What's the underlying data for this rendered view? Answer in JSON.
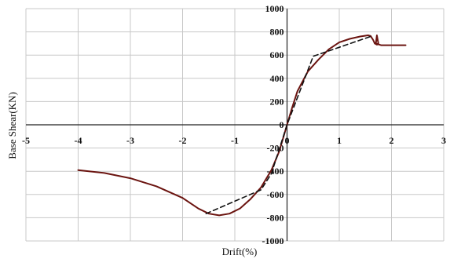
{
  "chart_data": {
    "type": "line",
    "title": "",
    "xlabel": "Drift(%)",
    "ylabel": "Base Shear(KN)",
    "xlim": [
      -5,
      3
    ],
    "ylim": [
      -1000,
      1000
    ],
    "x_ticks": [
      -5,
      -4,
      -3,
      -2,
      -1,
      0,
      1,
      2,
      3
    ],
    "y_ticks": [
      -1000,
      -800,
      -600,
      -400,
      -200,
      0,
      200,
      400,
      600,
      800,
      1000
    ],
    "grid": true,
    "legend": "none",
    "series": [
      {
        "style": "solid",
        "color": "#6b1410",
        "points": [
          [
            -4.0,
            -390
          ],
          [
            -3.5,
            -415
          ],
          [
            -3.0,
            -460
          ],
          [
            -2.5,
            -530
          ],
          [
            -2.0,
            -630
          ],
          [
            -1.7,
            -720
          ],
          [
            -1.5,
            -765
          ],
          [
            -1.3,
            -780
          ],
          [
            -1.1,
            -765
          ],
          [
            -0.9,
            -720
          ],
          [
            -0.7,
            -640
          ],
          [
            -0.5,
            -540
          ],
          [
            -0.3,
            -390
          ],
          [
            -0.15,
            -230
          ],
          [
            0.0,
            0
          ],
          [
            0.1,
            150
          ],
          [
            0.2,
            290
          ],
          [
            0.4,
            460
          ],
          [
            0.6,
            560
          ],
          [
            0.8,
            650
          ],
          [
            1.0,
            710
          ],
          [
            1.2,
            740
          ],
          [
            1.4,
            760
          ],
          [
            1.55,
            770
          ],
          [
            1.6,
            765
          ],
          [
            1.65,
            730
          ],
          [
            1.68,
            700
          ],
          [
            1.72,
            690
          ],
          [
            1.75,
            695
          ],
          [
            1.72,
            770
          ],
          [
            1.7,
            700
          ],
          [
            1.8,
            685
          ],
          [
            2.0,
            685
          ],
          [
            2.27,
            685
          ]
        ]
      },
      {
        "style": "dashed",
        "color": "#111111",
        "points": [
          [
            -1.55,
            -765
          ],
          [
            -0.5,
            -560
          ],
          [
            -0.3,
            -420
          ],
          [
            0.0,
            0
          ],
          [
            0.5,
            590
          ],
          [
            1.6,
            760
          ]
        ]
      }
    ]
  }
}
